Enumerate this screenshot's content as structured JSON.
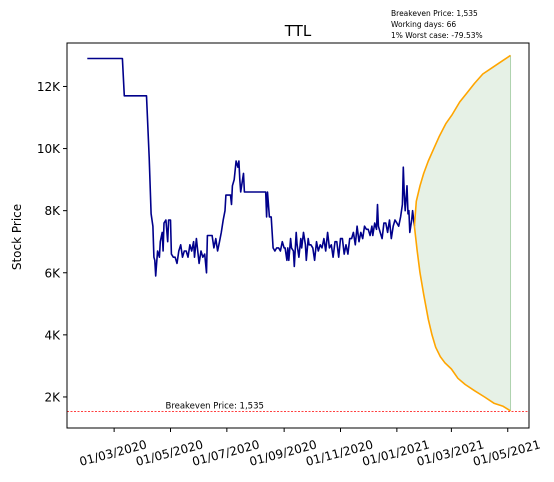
{
  "chart_data": {
    "type": "line",
    "title": "TTL",
    "ylabel": "Stock Price",
    "xlabel": "",
    "info_lines": [
      "Breakeven Price: 1,535",
      "Working days: 66",
      "1% Worst case: -79.53%"
    ],
    "xlim": [
      "2020-01-10",
      "2021-05-24"
    ],
    "ylim": [
      1000,
      13400
    ],
    "x_ticks": [
      "2020-03-01",
      "2020-05-01",
      "2020-07-01",
      "2020-09-01",
      "2020-11-01",
      "2021-01-01",
      "2021-03-01",
      "2021-05-01"
    ],
    "x_tick_labels": [
      "01/03/2020",
      "01/05/2020",
      "01/07/2020",
      "01/09/2020",
      "01/11/2020",
      "01/01/2021",
      "01/03/2021",
      "01/05/2021"
    ],
    "y_ticks": [
      2000,
      4000,
      6000,
      8000,
      10000,
      12000
    ],
    "y_tick_labels": [
      "2K",
      "4K",
      "6K",
      "8K",
      "10K",
      "12K"
    ],
    "grid": false,
    "colors": {
      "history": "#00008b",
      "forecast": "#ffa500",
      "band": "#2e8b2e",
      "breakeven": "#ff0000"
    },
    "breakeven": {
      "value": 1535,
      "label": "Breakeven Price: 1,535",
      "label_x": "2020-05-01"
    },
    "series": [
      {
        "kind": "history",
        "points": [
          [
            "2020-02-01",
            12900
          ],
          [
            "2020-03-10",
            12900
          ],
          [
            "2020-03-12",
            11700
          ],
          [
            "2020-04-05",
            11700
          ],
          [
            "2020-04-08",
            9700
          ],
          [
            "2020-04-10",
            7900
          ],
          [
            "2020-04-12",
            7500
          ],
          [
            "2020-04-13",
            6500
          ],
          [
            "2020-04-14",
            6400
          ],
          [
            "2020-04-15",
            5900
          ],
          [
            "2020-04-16",
            6300
          ],
          [
            "2020-04-17",
            6700
          ],
          [
            "2020-04-19",
            6500
          ],
          [
            "2020-04-20",
            7000
          ],
          [
            "2020-04-22",
            7300
          ],
          [
            "2020-04-23",
            6700
          ],
          [
            "2020-04-24",
            7600
          ],
          [
            "2020-04-26",
            7700
          ],
          [
            "2020-04-28",
            7000
          ],
          [
            "2020-04-29",
            7700
          ],
          [
            "2020-05-01",
            7700
          ],
          [
            "2020-05-02",
            6600
          ],
          [
            "2020-05-04",
            6500
          ],
          [
            "2020-05-06",
            6500
          ],
          [
            "2020-05-08",
            6300
          ],
          [
            "2020-05-10",
            6700
          ],
          [
            "2020-05-12",
            6900
          ],
          [
            "2020-05-14",
            6500
          ],
          [
            "2020-05-16",
            6700
          ],
          [
            "2020-05-18",
            6700
          ],
          [
            "2020-05-20",
            6500
          ],
          [
            "2020-05-22",
            6900
          ],
          [
            "2020-05-24",
            6700
          ],
          [
            "2020-05-26",
            7000
          ],
          [
            "2020-05-27",
            6500
          ],
          [
            "2020-05-29",
            7100
          ],
          [
            "2020-06-01",
            6300
          ],
          [
            "2020-06-03",
            6700
          ],
          [
            "2020-06-05",
            6500
          ],
          [
            "2020-06-07",
            6600
          ],
          [
            "2020-06-09",
            6000
          ],
          [
            "2020-06-10",
            7200
          ],
          [
            "2020-06-12",
            7200
          ],
          [
            "2020-06-15",
            7200
          ],
          [
            "2020-06-17",
            6800
          ],
          [
            "2020-06-19",
            7100
          ],
          [
            "2020-06-21",
            6700
          ],
          [
            "2020-06-23",
            7000
          ],
          [
            "2020-06-25",
            7300
          ],
          [
            "2020-06-27",
            7700
          ],
          [
            "2020-06-29",
            8000
          ],
          [
            "2020-06-30",
            8500
          ],
          [
            "2020-07-02",
            8500
          ],
          [
            "2020-07-05",
            8500
          ],
          [
            "2020-07-06",
            8200
          ],
          [
            "2020-07-07",
            8800
          ],
          [
            "2020-07-09",
            9000
          ],
          [
            "2020-07-11",
            9600
          ],
          [
            "2020-07-13",
            9400
          ],
          [
            "2020-07-14",
            9600
          ],
          [
            "2020-07-15",
            9000
          ],
          [
            "2020-07-16",
            8600
          ],
          [
            "2020-07-19",
            9200
          ],
          [
            "2020-07-20",
            8600
          ],
          [
            "2020-08-12",
            8600
          ],
          [
            "2020-08-13",
            7800
          ],
          [
            "2020-08-14",
            8600
          ],
          [
            "2020-08-16",
            7800
          ],
          [
            "2020-08-18",
            7800
          ],
          [
            "2020-08-20",
            6800
          ],
          [
            "2020-08-22",
            6700
          ],
          [
            "2020-08-24",
            6800
          ],
          [
            "2020-08-26",
            6800
          ],
          [
            "2020-08-28",
            6700
          ],
          [
            "2020-08-30",
            7000
          ],
          [
            "2020-09-01",
            6800
          ],
          [
            "2020-09-02",
            6800
          ],
          [
            "2020-09-04",
            6400
          ],
          [
            "2020-09-05",
            6800
          ],
          [
            "2020-09-06",
            6400
          ],
          [
            "2020-09-08",
            7100
          ],
          [
            "2020-09-09",
            6800
          ],
          [
            "2020-09-11",
            6700
          ],
          [
            "2020-09-12",
            6200
          ],
          [
            "2020-09-14",
            7300
          ],
          [
            "2020-09-15",
            6900
          ],
          [
            "2020-09-17",
            6500
          ],
          [
            "2020-09-19",
            7100
          ],
          [
            "2020-09-20",
            6800
          ],
          [
            "2020-09-22",
            7300
          ],
          [
            "2020-09-24",
            6900
          ],
          [
            "2020-09-25",
            6400
          ],
          [
            "2020-09-27",
            7100
          ],
          [
            "2020-09-28",
            6900
          ],
          [
            "2020-09-30",
            6900
          ],
          [
            "2020-10-02",
            6800
          ],
          [
            "2020-10-04",
            6400
          ],
          [
            "2020-10-06",
            7000
          ],
          [
            "2020-10-08",
            6700
          ],
          [
            "2020-10-10",
            6900
          ],
          [
            "2020-10-12",
            6800
          ],
          [
            "2020-10-14",
            7100
          ],
          [
            "2020-10-16",
            6700
          ],
          [
            "2020-10-18",
            7300
          ],
          [
            "2020-10-20",
            6800
          ],
          [
            "2020-10-22",
            6900
          ],
          [
            "2020-10-24",
            6500
          ],
          [
            "2020-10-26",
            7000
          ],
          [
            "2020-10-28",
            7000
          ],
          [
            "2020-10-30",
            6500
          ],
          [
            "2020-11-01",
            7100
          ],
          [
            "2020-11-03",
            7100
          ],
          [
            "2020-11-05",
            6600
          ],
          [
            "2020-11-07",
            6900
          ],
          [
            "2020-11-09",
            6600
          ],
          [
            "2020-11-11",
            7100
          ],
          [
            "2020-11-13",
            7100
          ],
          [
            "2020-11-15",
            7300
          ],
          [
            "2020-11-17",
            6900
          ],
          [
            "2020-11-19",
            7500
          ],
          [
            "2020-11-21",
            7000
          ],
          [
            "2020-11-23",
            7300
          ],
          [
            "2020-11-25",
            7100
          ],
          [
            "2020-11-27",
            7500
          ],
          [
            "2020-11-29",
            7400
          ],
          [
            "2020-12-01",
            7400
          ],
          [
            "2020-12-03",
            7200
          ],
          [
            "2020-12-05",
            7500
          ],
          [
            "2020-12-06",
            7200
          ],
          [
            "2020-12-08",
            7600
          ],
          [
            "2020-12-10",
            7400
          ],
          [
            "2020-12-11",
            8200
          ],
          [
            "2020-12-12",
            7500
          ],
          [
            "2020-12-14",
            7300
          ],
          [
            "2020-12-16",
            7100
          ],
          [
            "2020-12-18",
            7600
          ],
          [
            "2020-12-20",
            7600
          ],
          [
            "2020-12-22",
            7300
          ],
          [
            "2020-12-24",
            7700
          ],
          [
            "2020-12-26",
            7100
          ],
          [
            "2020-12-28",
            7500
          ],
          [
            "2020-12-30",
            7700
          ],
          [
            "2021-01-01",
            7600
          ],
          [
            "2021-01-03",
            7500
          ],
          [
            "2021-01-05",
            7800
          ],
          [
            "2021-01-07",
            8200
          ],
          [
            "2021-01-08",
            9400
          ],
          [
            "2021-01-09",
            8500
          ],
          [
            "2021-01-10",
            8000
          ],
          [
            "2021-01-12",
            8800
          ],
          [
            "2021-01-13",
            7900
          ],
          [
            "2021-01-14",
            8000
          ],
          [
            "2021-01-15",
            7300
          ],
          [
            "2021-01-17",
            7700
          ],
          [
            "2021-01-18",
            8000
          ],
          [
            "2021-01-20",
            7500
          ]
        ]
      },
      {
        "kind": "forecast-upper",
        "points": [
          [
            "2021-01-20",
            7500
          ],
          [
            "2021-01-22",
            8300
          ],
          [
            "2021-01-26",
            8800
          ],
          [
            "2021-01-30",
            9200
          ],
          [
            "2021-02-04",
            9600
          ],
          [
            "2021-02-10",
            10000
          ],
          [
            "2021-02-16",
            10400
          ],
          [
            "2021-02-23",
            10800
          ],
          [
            "2021-03-02",
            11100
          ],
          [
            "2021-03-10",
            11500
          ],
          [
            "2021-03-18",
            11800
          ],
          [
            "2021-03-26",
            12100
          ],
          [
            "2021-04-04",
            12400
          ],
          [
            "2021-04-14",
            12600
          ],
          [
            "2021-04-24",
            12800
          ],
          [
            "2021-05-04",
            13000
          ]
        ]
      },
      {
        "kind": "forecast-lower",
        "points": [
          [
            "2021-01-20",
            7500
          ],
          [
            "2021-01-23",
            6700
          ],
          [
            "2021-01-26",
            6000
          ],
          [
            "2021-01-30",
            5300
          ],
          [
            "2021-02-04",
            4500
          ],
          [
            "2021-02-08",
            4000
          ],
          [
            "2021-02-12",
            3600
          ],
          [
            "2021-02-17",
            3300
          ],
          [
            "2021-02-22",
            3100
          ],
          [
            "2021-03-01",
            2900
          ],
          [
            "2021-03-08",
            2600
          ],
          [
            "2021-03-16",
            2400
          ],
          [
            "2021-03-26",
            2200
          ],
          [
            "2021-04-06",
            2000
          ],
          [
            "2021-04-16",
            1800
          ],
          [
            "2021-04-26",
            1700
          ],
          [
            "2021-05-04",
            1550
          ]
        ]
      }
    ]
  }
}
